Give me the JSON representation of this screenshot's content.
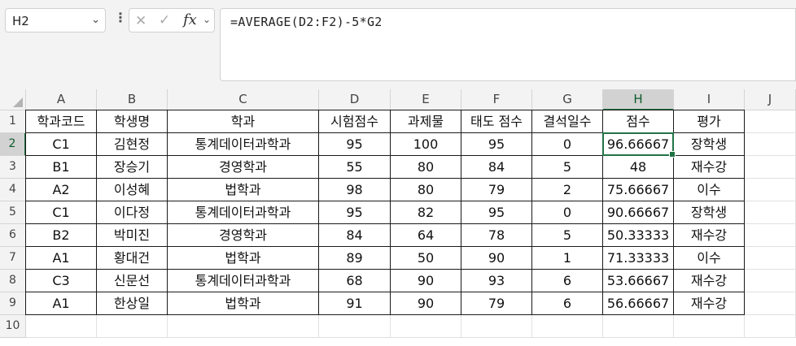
{
  "namebox": {
    "value": "H2"
  },
  "formula_bar": {
    "value": "=AVERAGE(D2:F2)-5*G2"
  },
  "icons": {
    "cancel": "close-icon",
    "enter": "check-icon",
    "function": "fx-icon"
  },
  "fx_label": "fx",
  "columns": [
    "A",
    "B",
    "C",
    "D",
    "E",
    "F",
    "G",
    "H",
    "I",
    "J"
  ],
  "rows": [
    "1",
    "2",
    "3",
    "4",
    "5",
    "6",
    "7",
    "8",
    "9",
    "10"
  ],
  "headers": [
    "학과코드",
    "학생명",
    "학과",
    "시험점수",
    "과제물",
    "태도 점수",
    "결석일수",
    "점수",
    "평가"
  ],
  "data": [
    [
      "C1",
      "김현정",
      "통계데이터과학과",
      "95",
      "100",
      "95",
      "0",
      "96.66667",
      "장학생"
    ],
    [
      "B1",
      "장승기",
      "경영학과",
      "55",
      "80",
      "84",
      "5",
      "48",
      "재수강"
    ],
    [
      "A2",
      "이성혜",
      "법학과",
      "98",
      "80",
      "79",
      "2",
      "75.66667",
      "이수"
    ],
    [
      "C1",
      "이다정",
      "통계데이터과학과",
      "95",
      "82",
      "95",
      "0",
      "90.66667",
      "장학생"
    ],
    [
      "B2",
      "박미진",
      "경영학과",
      "84",
      "64",
      "78",
      "5",
      "50.33333",
      "재수강"
    ],
    [
      "A1",
      "황대건",
      "법학과",
      "89",
      "50",
      "90",
      "1",
      "71.33333",
      "이수"
    ],
    [
      "C3",
      "신문선",
      "통계데이터과학과",
      "68",
      "90",
      "93",
      "6",
      "53.66667",
      "재수강"
    ],
    [
      "A1",
      "한상일",
      "법학과",
      "91",
      "90",
      "79",
      "6",
      "56.66667",
      "재수강"
    ]
  ],
  "selection": {
    "cell": "H2",
    "column": "H",
    "row": "2"
  },
  "colors": {
    "accent": "#217346",
    "header_bg": "#f3f3f3",
    "selected_header_bg": "#d2d2d2"
  }
}
